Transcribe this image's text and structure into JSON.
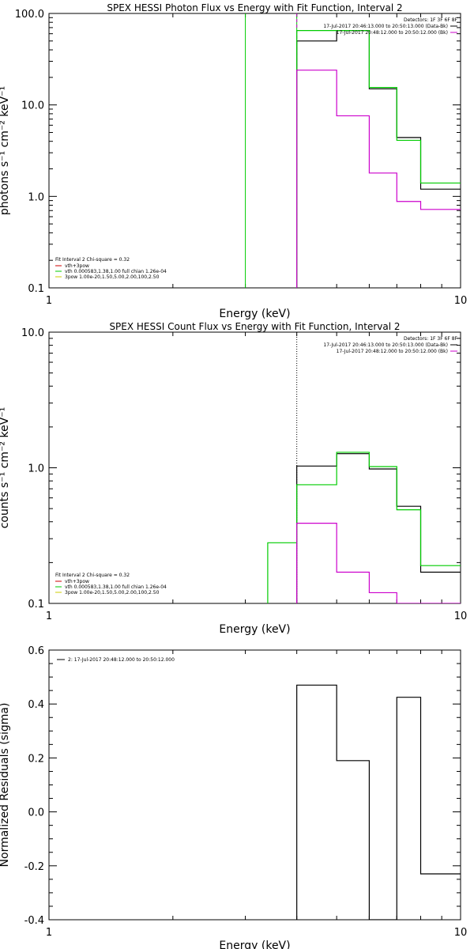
{
  "chart_data": [
    {
      "type": "line",
      "title": "SPEX HESSI Photon Flux vs Energy with Fit Function, Interval 2",
      "xlabel": "Energy (keV)",
      "ylabel": "photons s⁻¹ cm⁻² keV⁻¹",
      "xscale": "log",
      "yscale": "log",
      "xlim": [
        1,
        10
      ],
      "ylim": [
        0.1,
        100
      ],
      "xticks": [
        "1",
        "10"
      ],
      "yticks": [
        "0.1",
        "1.0",
        "10.0",
        "100.0"
      ],
      "legend_top": {
        "header": "Detectors: 1F 3F 6F 8F",
        "entries": [
          {
            "text": "17-Jul-2017 20:46:13.000 to 20:50:13.000 (Data-Bk)",
            "color": "#000000"
          },
          {
            "text": "17-Jul-2017 20:48:12.000 to 20:50:12.000 (Bk)",
            "color": "#cc00cc"
          }
        ]
      },
      "legend_bottom": {
        "header": "Fit Interval 2   Chi-square = 0.32",
        "entries": [
          {
            "text": "vth+3pow",
            "color": "#cc0000"
          },
          {
            "text": "vth 0.000583,1.38,1.00   full chian 1.26e-04",
            "color": "#00cc00"
          },
          {
            "text": "3pow 1.00e-20,1.50,5.00,2.00,100,2.50",
            "color": "#cccc00"
          }
        ]
      },
      "vlines": [
        {
          "x": 3.0,
          "color": "#00cc00"
        },
        {
          "x": 4.0,
          "color": "#00cc00"
        },
        {
          "x": 4.0,
          "color": "#cc00cc",
          "style": "dashed"
        }
      ],
      "series": [
        {
          "color": "#000000",
          "edges": [
            4.0,
            5.0,
            6.0,
            7.0,
            8.0,
            9.0,
            10.0
          ],
          "values": [
            50.0,
            65.0,
            15.0,
            4.4,
            1.2,
            1.2
          ]
        },
        {
          "color": "#00cc00",
          "edges": [
            4.0,
            5.0,
            6.0,
            7.0,
            8.0,
            9.0,
            10.0
          ],
          "values": [
            65.0,
            65.0,
            15.5,
            4.1,
            1.4,
            1.4
          ]
        },
        {
          "color": "#cc00cc",
          "edges": [
            4.0,
            5.0,
            6.0,
            7.0,
            8.0,
            9.0,
            10.0
          ],
          "values": [
            24.0,
            7.6,
            1.8,
            0.88,
            0.72,
            0.72
          ]
        }
      ]
    },
    {
      "type": "line",
      "title": "SPEX HESSI Count Flux vs Energy with Fit Function, Interval 2",
      "xlabel": "Energy (keV)",
      "ylabel": "counts s⁻¹ cm⁻² keV⁻¹",
      "xscale": "log",
      "yscale": "log",
      "xlim": [
        1,
        10
      ],
      "ylim": [
        0.1,
        10
      ],
      "xticks": [
        "1",
        "10"
      ],
      "yticks": [
        "0.1",
        "1.0",
        "10.0"
      ],
      "legend_top": {
        "header": "Detectors: 1F 3F 6F 8F",
        "entries": [
          {
            "text": "17-Jul-2017 20:46:13.000 to 20:50:13.000 (Data-Bk)",
            "color": "#000000"
          },
          {
            "text": "17-Jul-2017 20:48:12.000 to 20:50:12.000 (Bk)",
            "color": "#cc00cc"
          }
        ]
      },
      "legend_bottom": {
        "header": "Fit Interval 2   Chi-square = 0.32",
        "entries": [
          {
            "text": "vth+3pow",
            "color": "#cc0000"
          },
          {
            "text": "vth 0.000583,1.38,1.00   full chian 1.26e-04",
            "color": "#00cc00"
          },
          {
            "text": "3pow 1.00e-20,1.50,5.00,2.00,100,2.50",
            "color": "#cccc00"
          }
        ]
      },
      "vlines": [
        {
          "x": 4.0,
          "color": "#000000",
          "style": "dotted"
        }
      ],
      "series": [
        {
          "color": "#000000",
          "edges": [
            4.0,
            5.0,
            6.0,
            7.0,
            8.0,
            9.0,
            10.0
          ],
          "values": [
            1.03,
            1.27,
            0.98,
            0.52,
            0.17,
            0.17
          ]
        },
        {
          "color": "#00cc00",
          "edges": [
            3.4,
            4.0,
            5.0,
            6.0,
            7.0,
            8.0,
            9.0,
            10.0
          ],
          "values": [
            0.28,
            0.75,
            1.3,
            1.02,
            0.49,
            0.19,
            0.19
          ]
        },
        {
          "color": "#cc00cc",
          "edges": [
            4.0,
            5.0,
            6.0,
            7.0,
            8.0,
            9.0,
            10.0
          ],
          "values": [
            0.39,
            0.17,
            0.12,
            0.1,
            0.095,
            0.095
          ]
        }
      ]
    },
    {
      "type": "line",
      "title": "",
      "xlabel": "Energy (keV)",
      "ylabel": "Normalized Residuals (sigma)",
      "xscale": "log",
      "yscale": "linear",
      "xlim": [
        1,
        10
      ],
      "ylim": [
        -0.4,
        0.6
      ],
      "xticks": [
        "1",
        "10"
      ],
      "yticks": [
        "-0.4",
        "-0.2",
        "0.0",
        "0.2",
        "0.4",
        "0.6"
      ],
      "legend": {
        "text": "2: 17-Jul-2017 20:48:12.000 to 20:50:12.000",
        "color": "#000000"
      },
      "series": [
        {
          "color": "#000000",
          "edges": [
            4.0,
            5.0,
            6.0,
            7.0,
            8.0,
            9.0,
            10.0
          ],
          "values": [
            0.47,
            0.19,
            -0.405,
            0.425,
            -0.23,
            -0.23
          ]
        }
      ]
    }
  ]
}
